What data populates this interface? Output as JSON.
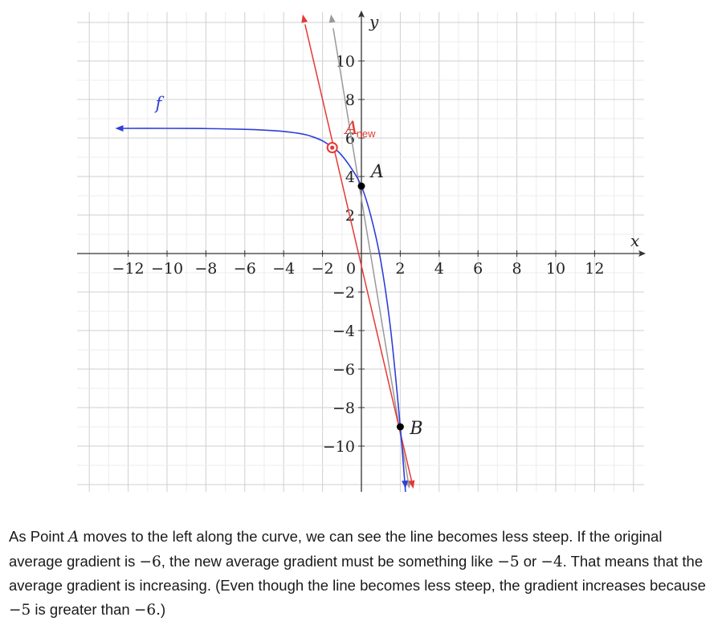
{
  "chart_data": {
    "type": "line",
    "xlabel": "x",
    "ylabel": "y",
    "xlim": [
      -13.5,
      13.5
    ],
    "ylim": [
      -11.8,
      11.5
    ],
    "grid": true,
    "x_ticks": [
      -12,
      -10,
      -8,
      -6,
      -4,
      -2,
      2,
      4,
      6,
      8,
      10,
      12
    ],
    "y_ticks": [
      -10,
      -8,
      -6,
      -4,
      -2,
      2,
      4,
      6,
      8,
      10
    ],
    "x_tick_labels": [
      "−12",
      "−10",
      "−8",
      "−6",
      "−4",
      "−2",
      "2",
      "4",
      "6",
      "8",
      "10",
      "12"
    ],
    "y_tick_labels": [
      "−10",
      "−8",
      "−6",
      "−4",
      "−2",
      "2",
      "4",
      "6",
      "8",
      "10"
    ],
    "origin_label": "0",
    "series": [
      {
        "name": "f",
        "kind": "curve",
        "color": "#2f3fd6",
        "x": [
          -12.5,
          -10,
          -8,
          -6,
          -5,
          -4,
          -3,
          -2.5,
          -2,
          -1.5,
          -1.1,
          -0.5,
          0,
          0.5,
          1,
          1.5,
          2,
          2.3
        ],
        "y": [
          6.5,
          6.5,
          6.49,
          6.45,
          6.41,
          6.34,
          6.2,
          6.06,
          5.85,
          5.52,
          5.2,
          4.4,
          3.5,
          1.9,
          -0.4,
          -3.9,
          -9,
          -12.8
        ]
      },
      {
        "name": "",
        "kind": "secant",
        "color": "#e53935",
        "x": [
          -2.9,
          2.65
        ],
        "y": [
          11.9,
          -12.1
        ]
      },
      {
        "name": "",
        "kind": "secant",
        "color": "#999999",
        "x": [
          -1.45,
          2.45
        ],
        "y": [
          11.7,
          -12.1
        ]
      }
    ],
    "points": [
      {
        "label": "A",
        "x": 0,
        "y": 3.5,
        "color": "#000000"
      },
      {
        "label": "B",
        "x": 2,
        "y": -9,
        "color": "#000000"
      },
      {
        "label": "A",
        "sub": "new",
        "x": -1.5,
        "y": 5.5,
        "color": "#e53935"
      }
    ]
  },
  "caption": {
    "s1a": "As Point ",
    "s1var": "A",
    "s1b": " moves to the left along the curve, we can see the line becomes less steep. If the original average gradient is ",
    "v1": "−6",
    "s2": ", the new average gradient must be something like ",
    "v2": "−5",
    "s3": " or ",
    "v3": "−4",
    "s4": ". That means that the average gradient is increasing. (Even though the line becomes less steep, the gradient increases because ",
    "v4": "−5",
    "s5": " is greater than ",
    "v5": "−6.",
    "s6": ")"
  }
}
